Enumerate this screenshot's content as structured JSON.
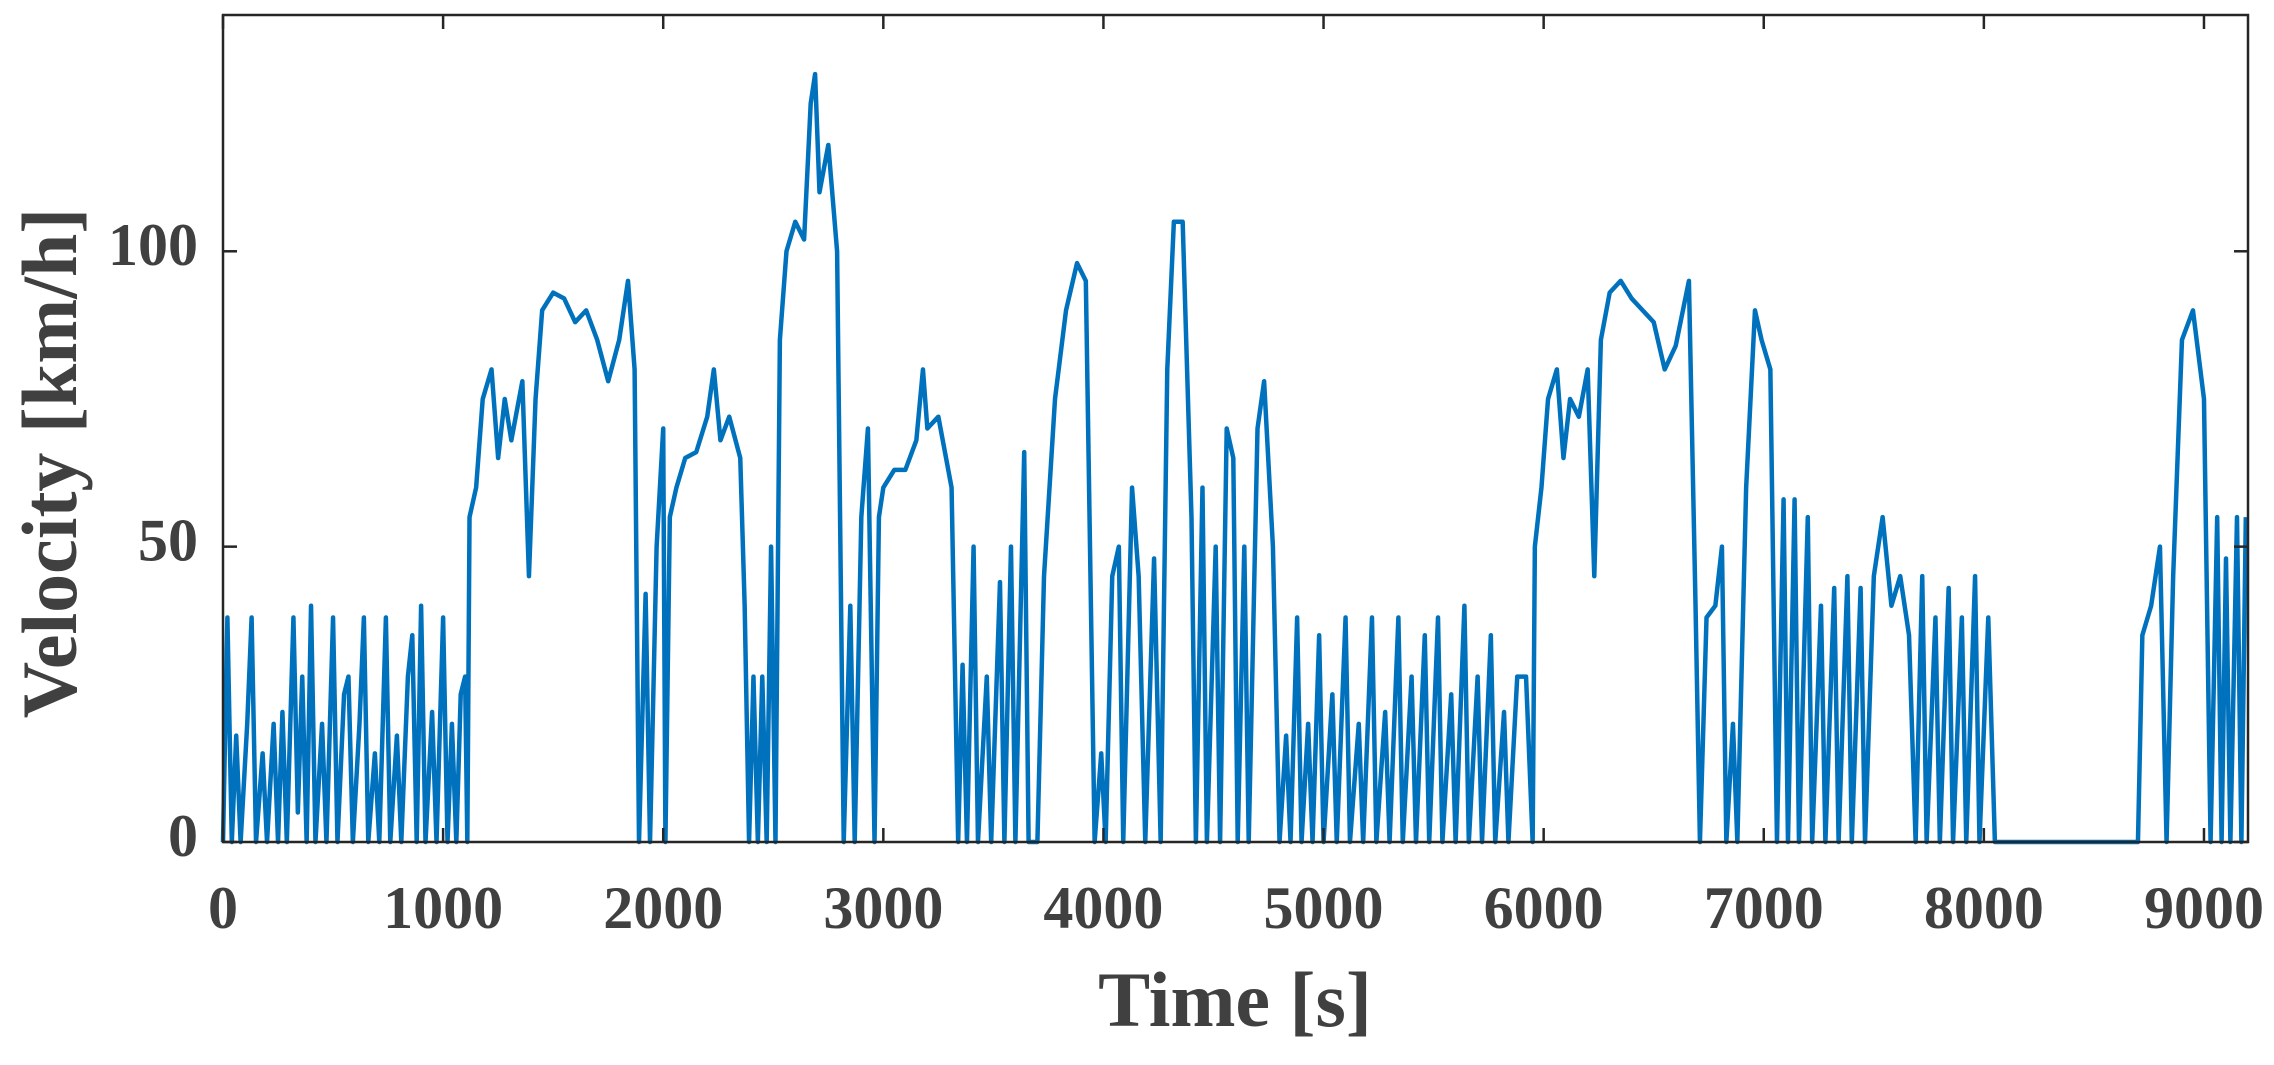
{
  "chart_data": {
    "type": "line",
    "xlabel": "Time [s]",
    "ylabel": "Velocity [km/h]",
    "color": "#0072BD",
    "xlim": [
      0,
      9200
    ],
    "ylim": [
      0,
      140
    ],
    "xticks": [
      0,
      1000,
      2000,
      3000,
      4000,
      5000,
      6000,
      7000,
      8000,
      9000
    ],
    "yticks": [
      0,
      50,
      100
    ],
    "x": [
      0,
      20,
      40,
      60,
      80,
      110,
      130,
      150,
      180,
      200,
      230,
      250,
      270,
      290,
      320,
      340,
      360,
      380,
      400,
      420,
      450,
      470,
      500,
      520,
      550,
      570,
      590,
      620,
      640,
      660,
      690,
      710,
      740,
      760,
      790,
      810,
      840,
      860,
      880,
      900,
      920,
      950,
      970,
      1000,
      1020,
      1040,
      1060,
      1080,
      1100,
      1110,
      1120,
      1150,
      1180,
      1220,
      1250,
      1280,
      1310,
      1360,
      1390,
      1420,
      1450,
      1500,
      1550,
      1600,
      1650,
      1700,
      1750,
      1800,
      1840,
      1870,
      1890,
      1920,
      1940,
      1970,
      2000,
      2010,
      2030,
      2060,
      2100,
      2150,
      2200,
      2230,
      2260,
      2300,
      2350,
      2370,
      2390,
      2410,
      2430,
      2450,
      2470,
      2490,
      2510,
      2530,
      2560,
      2600,
      2640,
      2670,
      2690,
      2710,
      2750,
      2790,
      2820,
      2850,
      2870,
      2900,
      2930,
      2960,
      2980,
      3000,
      3050,
      3100,
      3150,
      3180,
      3200,
      3250,
      3310,
      3340,
      3360,
      3380,
      3410,
      3430,
      3470,
      3490,
      3530,
      3550,
      3580,
      3600,
      3640,
      3660,
      3700,
      3730,
      3780,
      3830,
      3880,
      3920,
      3960,
      3990,
      4010,
      4040,
      4070,
      4090,
      4130,
      4160,
      4190,
      4230,
      4260,
      4290,
      4320,
      4360,
      4400,
      4420,
      4450,
      4470,
      4510,
      4530,
      4560,
      4590,
      4610,
      4640,
      4660,
      4700,
      4730,
      4770,
      4800,
      4830,
      4850,
      4880,
      4900,
      4930,
      4950,
      4980,
      5000,
      5040,
      5060,
      5100,
      5120,
      5160,
      5180,
      5220,
      5240,
      5280,
      5300,
      5340,
      5360,
      5400,
      5420,
      5460,
      5480,
      5520,
      5540,
      5580,
      5600,
      5640,
      5660,
      5700,
      5720,
      5760,
      5780,
      5820,
      5840,
      5880,
      5920,
      5950,
      5960,
      5990,
      6020,
      6060,
      6090,
      6120,
      6160,
      6200,
      6230,
      6260,
      6300,
      6350,
      6400,
      6450,
      6500,
      6550,
      6600,
      6660,
      6690,
      6710,
      6740,
      6780,
      6810,
      6830,
      6860,
      6880,
      6920,
      6960,
      6990,
      7030,
      7060,
      7090,
      7110,
      7140,
      7160,
      7200,
      7220,
      7260,
      7280,
      7320,
      7340,
      7380,
      7400,
      7440,
      7460,
      7500,
      7540,
      7580,
      7620,
      7660,
      7690,
      7720,
      7740,
      7780,
      7800,
      7840,
      7860,
      7900,
      7920,
      7960,
      7980,
      8020,
      8050,
      8080,
      8700,
      8720,
      8760,
      8800,
      8830,
      8860,
      8900,
      8950,
      9000,
      9030,
      9060,
      9080,
      9100,
      9120,
      9150,
      9170,
      9190
    ],
    "values": [
      0,
      38,
      0,
      18,
      0,
      20,
      38,
      0,
      15,
      0,
      20,
      0,
      22,
      0,
      38,
      5,
      28,
      0,
      40,
      0,
      20,
      0,
      38,
      0,
      25,
      28,
      0,
      20,
      38,
      0,
      15,
      0,
      38,
      0,
      18,
      0,
      28,
      35,
      0,
      40,
      0,
      22,
      0,
      38,
      0,
      20,
      0,
      25,
      28,
      0,
      55,
      60,
      75,
      80,
      65,
      75,
      68,
      78,
      45,
      75,
      90,
      93,
      92,
      88,
      90,
      85,
      78,
      85,
      95,
      80,
      0,
      42,
      0,
      50,
      70,
      0,
      55,
      60,
      65,
      66,
      72,
      80,
      68,
      72,
      65,
      40,
      0,
      28,
      0,
      28,
      0,
      50,
      0,
      85,
      100,
      105,
      102,
      125,
      130,
      110,
      118,
      100,
      0,
      40,
      0,
      55,
      70,
      0,
      55,
      60,
      63,
      63,
      68,
      80,
      70,
      72,
      60,
      0,
      30,
      0,
      50,
      0,
      28,
      0,
      44,
      0,
      50,
      0,
      66,
      0,
      0,
      45,
      75,
      90,
      98,
      95,
      0,
      15,
      0,
      45,
      50,
      0,
      60,
      45,
      0,
      48,
      0,
      80,
      105,
      105,
      55,
      0,
      60,
      0,
      50,
      0,
      70,
      65,
      0,
      50,
      0,
      70,
      78,
      50,
      0,
      18,
      0,
      38,
      0,
      20,
      0,
      35,
      0,
      25,
      0,
      38,
      0,
      20,
      0,
      38,
      0,
      22,
      0,
      38,
      0,
      28,
      0,
      35,
      0,
      38,
      0,
      25,
      0,
      40,
      0,
      28,
      0,
      35,
      0,
      22,
      0,
      28,
      28,
      0,
      50,
      60,
      75,
      80,
      65,
      75,
      72,
      80,
      45,
      85,
      93,
      95,
      92,
      90,
      88,
      80,
      84,
      95,
      40,
      0,
      38,
      40,
      50,
      0,
      20,
      0,
      60,
      90,
      85,
      80,
      0,
      58,
      0,
      58,
      0,
      55,
      0,
      40,
      0,
      43,
      0,
      45,
      0,
      43,
      0,
      45,
      55,
      40,
      45,
      35,
      0,
      45,
      0,
      38,
      0,
      43,
      0,
      38,
      0,
      45,
      0,
      38,
      0,
      0,
      0,
      35,
      40,
      50,
      0,
      45,
      85,
      90,
      75,
      0,
      55,
      0,
      48,
      0,
      55,
      0,
      55
    ]
  }
}
